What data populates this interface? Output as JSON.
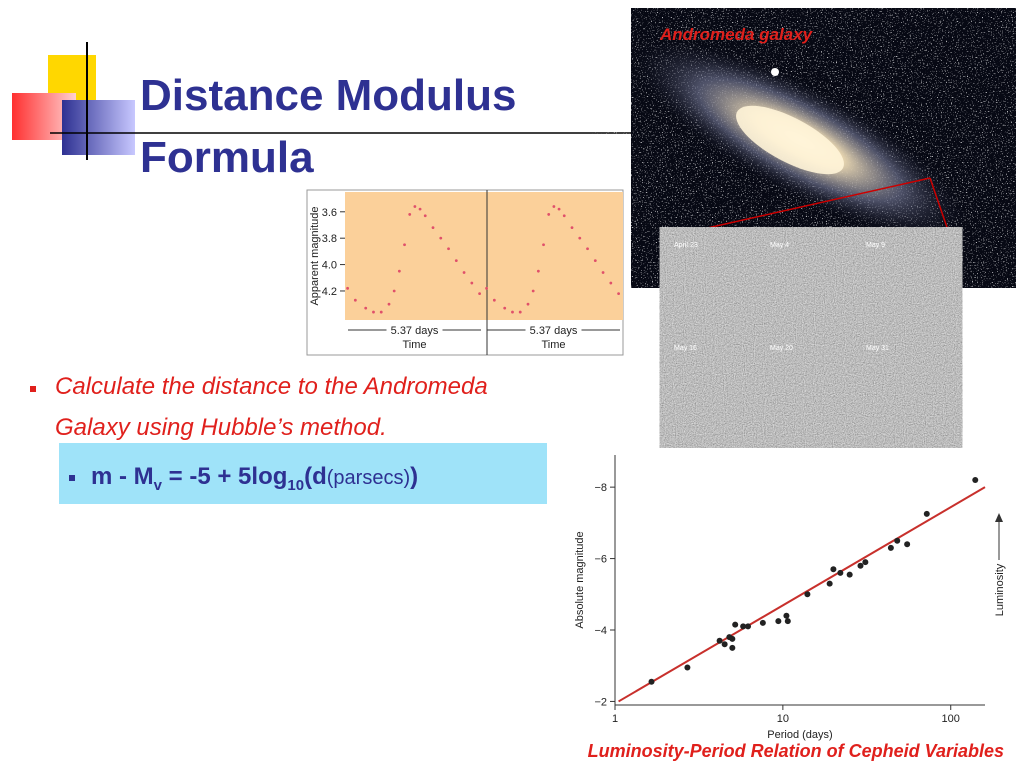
{
  "slide": {
    "title": [
      "Distance Modulus",
      "Formula"
    ],
    "image_caption": "Andromeda galaxy",
    "photo_dates": [
      "April 23",
      "May 4",
      "May 9",
      "May 16",
      "May 20",
      "May 31"
    ],
    "bullet": [
      "Calculate the distance to the Andromeda",
      "Galaxy using Hubble’s method."
    ],
    "formula": {
      "m": "m - M",
      "sub_v": "v",
      "mid": " = -5 + 5log",
      "sub_10": "10",
      "d": "(d",
      "unit": "(parsecs)",
      "close": ")"
    },
    "caption": "Luminosity-Period Relation of Cepheid Variables"
  },
  "chart_data": [
    {
      "type": "scatter",
      "ylabel": "Apparent magnitude",
      "xlabels": [
        "Time",
        "Time"
      ],
      "annotations": [
        "5.37 days",
        "5.37 days"
      ],
      "color": "#e0506a",
      "xlim": [
        0,
        10.74
      ],
      "ylim": [
        4.42,
        3.45
      ],
      "yticks": [
        3.6,
        {
          "value": 3.8,
          "label": "3.8"
        },
        {
          "value": 4.0,
          "label": "4.0"
        },
        4.2
      ],
      "x": [
        0.1,
        0.4,
        0.8,
        1.1,
        1.4,
        1.7,
        1.9,
        2.1,
        2.3,
        2.5,
        2.7,
        2.9,
        3.1,
        3.4,
        3.7,
        4.0,
        4.3,
        4.6,
        4.9,
        5.2,
        5.47,
        5.77,
        6.17,
        6.47,
        6.77,
        7.07,
        7.27,
        7.47,
        7.67,
        7.87,
        8.07,
        8.27,
        8.47,
        8.77,
        9.07,
        9.37,
        9.67,
        9.97,
        10.27,
        10.57
      ],
      "values": [
        4.18,
        4.27,
        4.33,
        4.36,
        4.36,
        4.3,
        4.2,
        4.05,
        3.85,
        3.62,
        3.56,
        3.58,
        3.63,
        3.72,
        3.8,
        3.88,
        3.97,
        4.06,
        4.14,
        4.22,
        4.18,
        4.27,
        4.33,
        4.36,
        4.36,
        4.3,
        4.2,
        4.05,
        3.85,
        3.62,
        3.56,
        3.58,
        3.63,
        3.72,
        3.8,
        3.88,
        3.97,
        4.06,
        4.14,
        4.22
      ]
    },
    {
      "type": "scatter",
      "log_x": true,
      "ylabel": "Absolute magnitude",
      "xlabel": "Period (days)",
      "side_label": "Luminosity",
      "color": "#222222",
      "xlim": [
        1,
        160
      ],
      "xticks": [
        1,
        10,
        100
      ],
      "ylim": [
        -1.9,
        -8.9
      ],
      "yticks": [
        {
          "value": -8,
          "label": "−8"
        },
        {
          "value": -6,
          "label": "−6"
        },
        {
          "value": -4,
          "label": "−4"
        },
        {
          "value": -2,
          "label": "−2"
        }
      ],
      "x": [
        1.65,
        2.7,
        4.2,
        4.5,
        4.8,
        5.0,
        5.0,
        5.2,
        5.8,
        6.2,
        7.6,
        9.4,
        10.5,
        10.7,
        14,
        19,
        20,
        22,
        25,
        29,
        31,
        44,
        48,
        55,
        72,
        140
      ],
      "values": [
        -2.55,
        -2.95,
        -3.7,
        -3.6,
        -3.8,
        -3.75,
        -3.5,
        -4.15,
        -4.1,
        -4.1,
        -4.2,
        -4.25,
        -4.4,
        -4.25,
        -5.0,
        -5.3,
        -5.7,
        -5.6,
        -5.55,
        -5.8,
        -5.9,
        -6.3,
        -6.5,
        -6.4,
        -7.25,
        -8.2
      ],
      "fit_line": {
        "color": "#c8302c",
        "x": [
          1.05,
          160
        ],
        "y": [
          -2.0,
          -8.0
        ]
      }
    }
  ]
}
